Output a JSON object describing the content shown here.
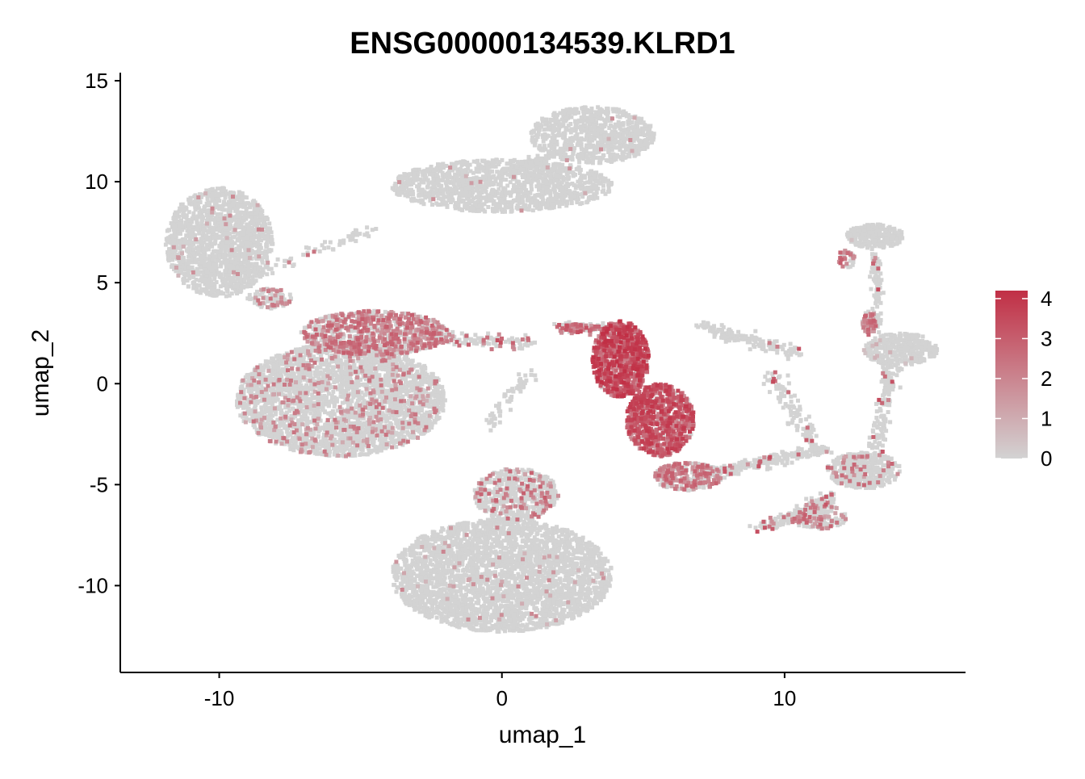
{
  "chart_data": {
    "type": "scatter",
    "title": "ENSG00000134539.KLRD1",
    "xlabel": "umap_1",
    "ylabel": "umap_2",
    "xlim": [
      -13.5,
      16.4
    ],
    "ylim": [
      -14.3,
      15.4
    ],
    "x_ticks": [
      -10,
      0,
      10
    ],
    "x_tick_labels": [
      "-10",
      "0",
      "10"
    ],
    "y_ticks": [
      -10,
      -5,
      0,
      5,
      10,
      15
    ],
    "y_tick_labels": [
      "-10",
      "-5",
      "0",
      "5",
      "10",
      "15"
    ],
    "grid": false,
    "legend": {
      "placement": "right",
      "type": "colorbar",
      "min": 0,
      "max": 4.2,
      "ticks": [
        0,
        1,
        2,
        3,
        4
      ],
      "tick_labels": [
        "0",
        "1",
        "2",
        "3",
        "4"
      ],
      "low_color": "#d3d3d3",
      "high_color": "#c12f45"
    },
    "point_color_low": "#d3d3d3",
    "point_color_high": "#c12f45",
    "clusters": [
      {
        "x": -10,
        "y": 7,
        "rx": 1.9,
        "ry": 2.7,
        "n": 1500,
        "expr": 0.02,
        "emax": 2
      },
      {
        "x": -8.2,
        "y": 4.2,
        "rx": 0.8,
        "ry": 0.5,
        "n": 100,
        "expr": 0.25,
        "emax": 2.5
      },
      {
        "x": 0,
        "y": 9.8,
        "rx": 3.9,
        "ry": 1.3,
        "n": 1300,
        "expr": 0.01,
        "emax": 2
      },
      {
        "x": 3.2,
        "y": 12.3,
        "rx": 2.2,
        "ry": 1.4,
        "n": 800,
        "expr": 0.01,
        "emax": 2
      },
      {
        "x": -5.7,
        "y": -0.8,
        "rx": 3.7,
        "ry": 2.8,
        "n": 3000,
        "expr": 0.12,
        "emax": 2.5
      },
      {
        "x": -4.5,
        "y": 2.5,
        "rx": 2.6,
        "ry": 1.1,
        "n": 900,
        "expr": 0.55,
        "emax": 3
      },
      {
        "x": 0,
        "y": -9.5,
        "rx": 3.9,
        "ry": 2.8,
        "n": 3000,
        "expr": 0.02,
        "emax": 2
      },
      {
        "x": 0.5,
        "y": -5.5,
        "rx": 1.5,
        "ry": 1.3,
        "n": 500,
        "expr": 0.2,
        "emax": 3
      },
      {
        "x": 4.2,
        "y": 1.2,
        "rx": 1.0,
        "ry": 1.9,
        "n": 800,
        "expr": 0.92,
        "emax": 4.2
      },
      {
        "x": 5.6,
        "y": -1.8,
        "rx": 1.2,
        "ry": 1.8,
        "n": 800,
        "expr": 0.9,
        "emax": 4
      },
      {
        "x": 6.6,
        "y": -4.6,
        "rx": 1.2,
        "ry": 0.7,
        "n": 300,
        "expr": 0.45,
        "emax": 3
      },
      {
        "x": 13.2,
        "y": 7.3,
        "rx": 1.0,
        "ry": 0.6,
        "n": 250,
        "expr": 0.01,
        "emax": 1
      },
      {
        "x": 14.1,
        "y": 1.7,
        "rx": 1.3,
        "ry": 0.8,
        "n": 350,
        "expr": 0.02,
        "emax": 1
      },
      {
        "x": 12.8,
        "y": -4.3,
        "rx": 1.3,
        "ry": 0.9,
        "n": 400,
        "expr": 0.1,
        "emax": 3
      },
      {
        "x": 13,
        "y": 3,
        "rx": 0.25,
        "ry": 0.6,
        "n": 60,
        "expr": 0.6,
        "emax": 3
      },
      {
        "x": 12.2,
        "y": 6.2,
        "rx": 0.3,
        "ry": 0.5,
        "n": 40,
        "expr": 0.5,
        "emax": 3
      },
      {
        "x": 11.2,
        "y": -6.6,
        "rx": 1.0,
        "ry": 0.6,
        "n": 150,
        "expr": 0.3,
        "emax": 3
      }
    ],
    "bridges": [
      {
        "from": [
          -8.5,
          5.5
        ],
        "to": [
          -4.6,
          7.6
        ],
        "n": 60,
        "spread": 0.3,
        "expr": 0.05
      },
      {
        "from": [
          -2.5,
          2.3
        ],
        "to": [
          1,
          2
        ],
        "n": 120,
        "spread": 0.35,
        "expr": 0.2
      },
      {
        "from": [
          1,
          0.5
        ],
        "to": [
          -0.5,
          -2
        ],
        "n": 60,
        "spread": 0.3,
        "expr": 0.05
      },
      {
        "from": [
          2,
          2.8
        ],
        "to": [
          4,
          2.7
        ],
        "n": 120,
        "spread": 0.25,
        "expr": 0.55
      },
      {
        "from": [
          7,
          -4.6
        ],
        "to": [
          11.5,
          -3.2
        ],
        "n": 250,
        "spread": 0.3,
        "expr": 0.08
      },
      {
        "from": [
          7,
          2.8
        ],
        "to": [
          10.5,
          1.5
        ],
        "n": 150,
        "spread": 0.35,
        "expr": 0.02
      },
      {
        "from": [
          9.5,
          0.5
        ],
        "to": [
          11,
          -3
        ],
        "n": 100,
        "spread": 0.35,
        "expr": 0.1
      },
      {
        "from": [
          13.2,
          6.6
        ],
        "to": [
          13.3,
          2.6
        ],
        "n": 100,
        "spread": 0.2,
        "expr": 0.1
      },
      {
        "from": [
          13.8,
          1
        ],
        "to": [
          13.2,
          -3.4
        ],
        "n": 150,
        "spread": 0.3,
        "expr": 0.05
      },
      {
        "from": [
          9.2,
          -7.2
        ],
        "to": [
          11.8,
          -5.6
        ],
        "n": 150,
        "spread": 0.3,
        "expr": 0.2
      },
      {
        "from": [
          1.8,
          11.3
        ],
        "to": [
          0.3,
          10.5
        ],
        "n": 80,
        "spread": 0.3,
        "expr": 0.0
      }
    ]
  }
}
